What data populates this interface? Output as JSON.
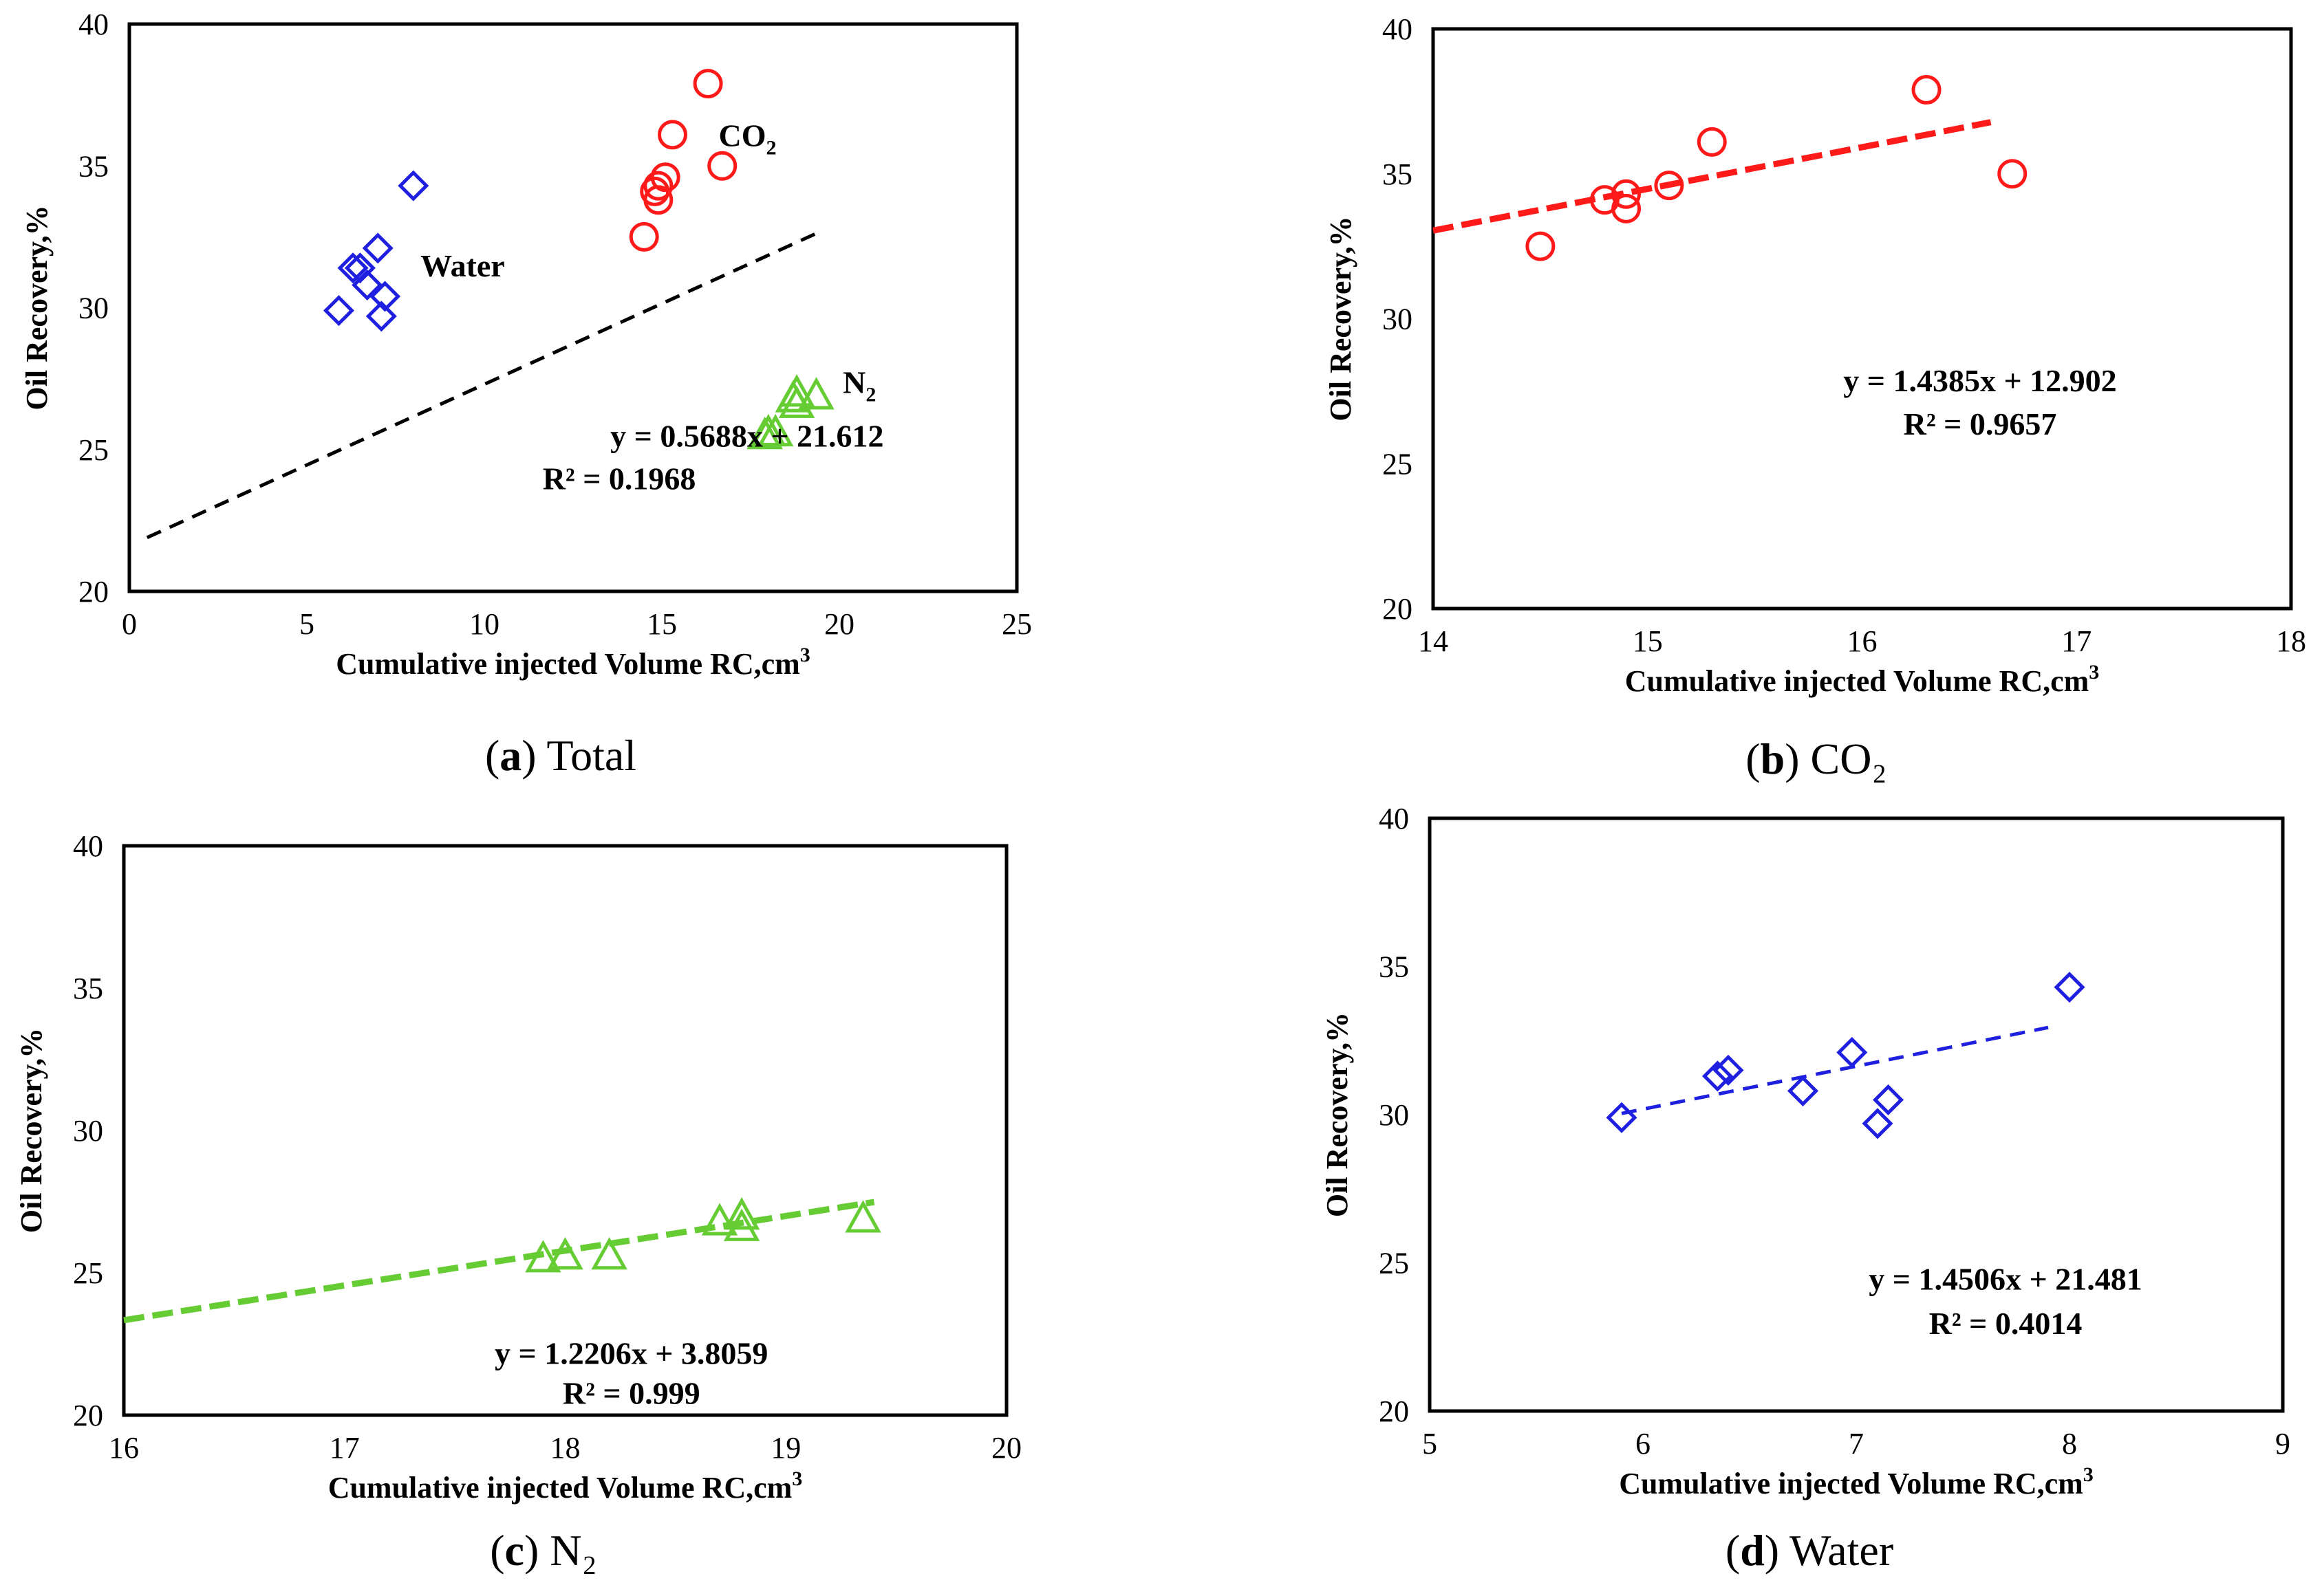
{
  "chart_data": [
    {
      "id": "a",
      "type": "scatter",
      "caption_letter": "a",
      "caption_text": "Total",
      "xlabel": "Cumulative injected Volume RC,cm",
      "xlabel_sup": "3",
      "ylabel": "Oil Recovery,%",
      "xlim": [
        0,
        25
      ],
      "ylim": [
        20,
        40
      ],
      "xticks": [
        "0",
        "5",
        "10",
        "15",
        "20",
        "25"
      ],
      "yticks": [
        "20",
        "25",
        "30",
        "35",
        "40"
      ],
      "xtick_values": [
        0,
        5,
        10,
        15,
        20,
        25
      ],
      "ytick_values": [
        20,
        25,
        30,
        35,
        40
      ],
      "series": [
        {
          "name": "Water",
          "marker": "diamond",
          "color": "#1f1fe0",
          "x": [
            5.9,
            6.3,
            6.5,
            6.7,
            7.0,
            7.1,
            7.2,
            8.0
          ],
          "y": [
            29.9,
            31.4,
            31.4,
            30.8,
            32.1,
            29.7,
            30.4,
            34.3
          ]
        },
        {
          "name": "CO",
          "name_sub": "2",
          "marker": "circle",
          "color": "#ff1a1a",
          "x": [
            14.5,
            14.8,
            14.9,
            14.9,
            15.1,
            15.3,
            16.3,
            16.7
          ],
          "y": [
            32.5,
            34.1,
            33.8,
            34.3,
            34.6,
            36.1,
            37.9,
            35.0
          ]
        },
        {
          "name": "N",
          "name_sub": "2",
          "marker": "triangle",
          "color": "#66cc33",
          "x": [
            17.9,
            18.0,
            18.2,
            18.7,
            18.8,
            18.8,
            19.35
          ],
          "y": [
            25.5,
            25.6,
            25.6,
            26.8,
            27.0,
            26.6,
            26.9
          ]
        }
      ],
      "labels": [
        {
          "series": "Water",
          "text": "Water",
          "x": 8.2,
          "y": 31.1
        },
        {
          "series": "CO2",
          "text": "CO",
          "sub": "2",
          "x": 16.6,
          "y": 35.7
        },
        {
          "series": "N2",
          "text": "N",
          "sub": "2",
          "x": 20.1,
          "y": 27.0
        }
      ],
      "trendline": {
        "slope": 0.5688,
        "intercept": 21.612,
        "x_range": [
          0.5,
          19.5
        ],
        "color": "#000000"
      },
      "equation": "y = 0.5688x + 21.612",
      "r_squared": "R² = 0.1968",
      "equation_pos": {
        "x": 17.4,
        "y": 25.1
      },
      "r2_pos": {
        "x": 13.8,
        "y": 23.6
      }
    },
    {
      "id": "b",
      "type": "scatter",
      "caption_letter": "b",
      "caption_text": "CO₂",
      "xlabel": "Cumulative injected Volume RC,cm",
      "xlabel_sup": "3",
      "ylabel": "Oil Recovery,%",
      "xlim": [
        14,
        18
      ],
      "ylim": [
        20,
        40
      ],
      "xticks": [
        "14",
        "15",
        "16",
        "17",
        "18"
      ],
      "yticks": [
        "20",
        "25",
        "30",
        "35",
        "40"
      ],
      "xtick_values": [
        14,
        15,
        16,
        17,
        18
      ],
      "ytick_values": [
        20,
        25,
        30,
        35,
        40
      ],
      "series": [
        {
          "name": "CO2",
          "marker": "circle",
          "color": "#ff1a1a",
          "x": [
            14.5,
            14.8,
            14.9,
            14.9,
            15.1,
            15.3,
            16.3,
            16.7
          ],
          "y": [
            32.5,
            34.1,
            33.8,
            34.3,
            34.6,
            36.1,
            37.9,
            35.0
          ]
        }
      ],
      "labels": [],
      "trendline": {
        "slope": 1.4385,
        "intercept": 12.902,
        "x_range": [
          14.0,
          16.6
        ],
        "color": "#ff1a1a"
      },
      "equation": "y = 1.4385x + 12.902",
      "r_squared": "R² = 0.9657",
      "equation_pos": {
        "x": 16.55,
        "y": 27.5
      },
      "r2_pos": {
        "x": 16.55,
        "y": 26.0
      }
    },
    {
      "id": "c",
      "type": "scatter",
      "caption_letter": "c",
      "caption_text": "N₂",
      "xlabel": "Cumulative injected Volume RC,cm",
      "xlabel_sup": "3",
      "ylabel": "Oil Recovery,%",
      "xlim": [
        16,
        20
      ],
      "ylim": [
        20,
        40
      ],
      "xticks": [
        "16",
        "17",
        "18",
        "19",
        "20"
      ],
      "yticks": [
        "20",
        "25",
        "30",
        "35",
        "40"
      ],
      "xtick_values": [
        16,
        17,
        18,
        19,
        20
      ],
      "ytick_values": [
        20,
        25,
        30,
        35,
        40
      ],
      "series": [
        {
          "name": "N2",
          "marker": "triangle",
          "color": "#66cc33",
          "x": [
            17.9,
            18.0,
            18.2,
            18.7,
            18.8,
            18.8,
            19.35
          ],
          "y": [
            25.5,
            25.6,
            25.6,
            26.8,
            27.0,
            26.6,
            26.9
          ]
        }
      ],
      "labels": [],
      "trendline": {
        "slope": 1.2206,
        "intercept": 3.8059,
        "x_range": [
          16.0,
          19.4
        ],
        "color": "#66cc33"
      },
      "equation": "y = 1.2206x + 3.8059",
      "r_squared": "R² = 0.999",
      "equation_pos": {
        "x": 18.3,
        "y": 21.8
      },
      "r2_pos": {
        "x": 18.3,
        "y": 20.4
      }
    },
    {
      "id": "d",
      "type": "scatter",
      "caption_letter": "d",
      "caption_text": "Water",
      "xlabel": "Cumulative injected Volume RC,cm",
      "xlabel_sup": "3",
      "ylabel": "Oil Recovery,%",
      "xlim": [
        5,
        9
      ],
      "ylim": [
        20,
        40
      ],
      "xticks": [
        "5",
        "6",
        "7",
        "8",
        "9"
      ],
      "yticks": [
        "20",
        "25",
        "30",
        "35",
        "40"
      ],
      "xtick_values": [
        5,
        6,
        7,
        8,
        9
      ],
      "ytick_values": [
        20,
        25,
        30,
        35,
        40
      ],
      "series": [
        {
          "name": "Water",
          "marker": "diamond",
          "color": "#1f1fe0",
          "x": [
            5.9,
            6.35,
            6.4,
            6.75,
            6.98,
            7.1,
            7.15,
            8.0
          ],
          "y": [
            29.9,
            31.3,
            31.5,
            30.8,
            32.1,
            29.7,
            30.5,
            34.3
          ]
        }
      ],
      "labels": [],
      "trendline": {
        "slope": 1.4506,
        "intercept": 21.481,
        "x_range": [
          5.9,
          7.9
        ],
        "color": "#1f1fe0"
      },
      "equation": "y = 1.4506x + 21.481",
      "r_squared": "R² = 0.4014",
      "equation_pos": {
        "x": 7.7,
        "y": 24.1
      },
      "r2_pos": {
        "x": 7.7,
        "y": 22.6
      }
    }
  ]
}
